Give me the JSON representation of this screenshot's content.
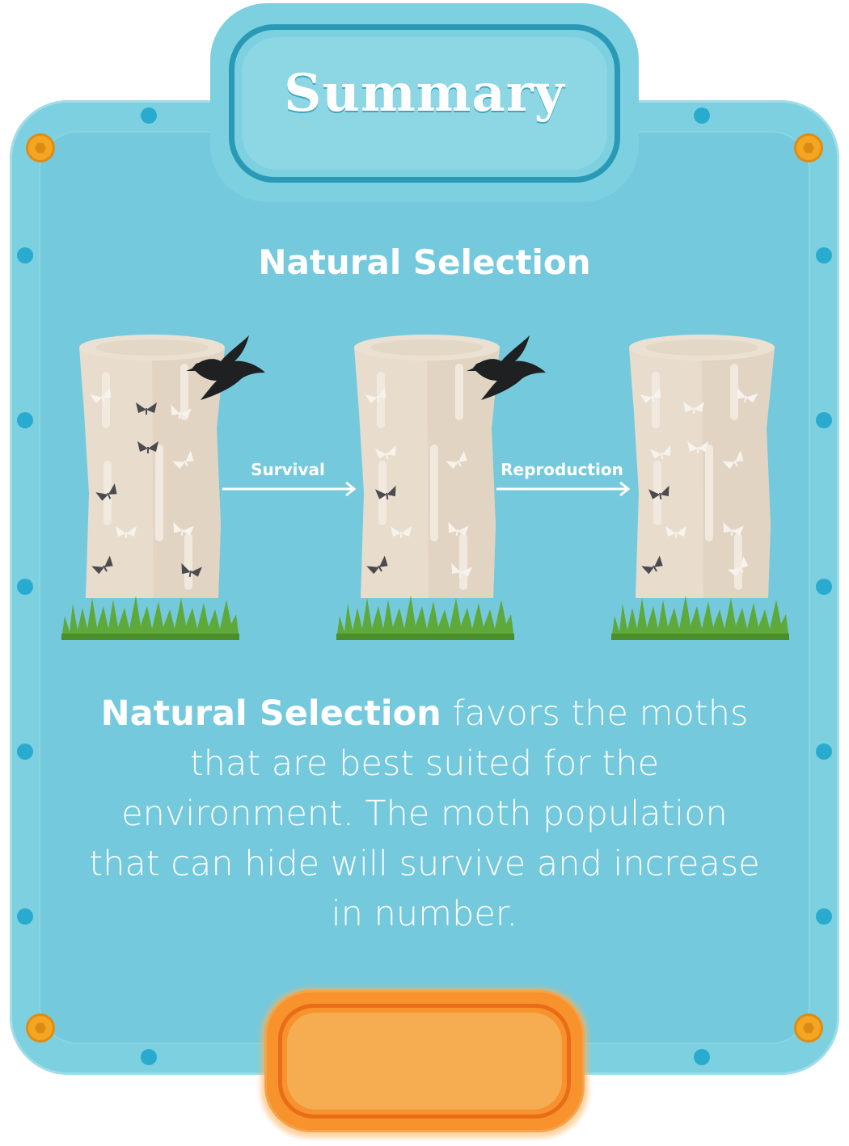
{
  "header": {
    "title": "Summary"
  },
  "section": {
    "heading": "Natural Selection"
  },
  "diagram": {
    "arrow1_label": "Survival",
    "arrow2_label": "Reproduction"
  },
  "summary": {
    "bold_term": "Natural Selection",
    "text": " favors the moths that are best suited for the environment. The moth population that can hide will survive and increase in number."
  },
  "colors": {
    "panel": "#74c9dc",
    "frame": "#7cd0e0",
    "rivet": "#29abd0",
    "button": "#f7922d",
    "text": "#ffffff"
  }
}
